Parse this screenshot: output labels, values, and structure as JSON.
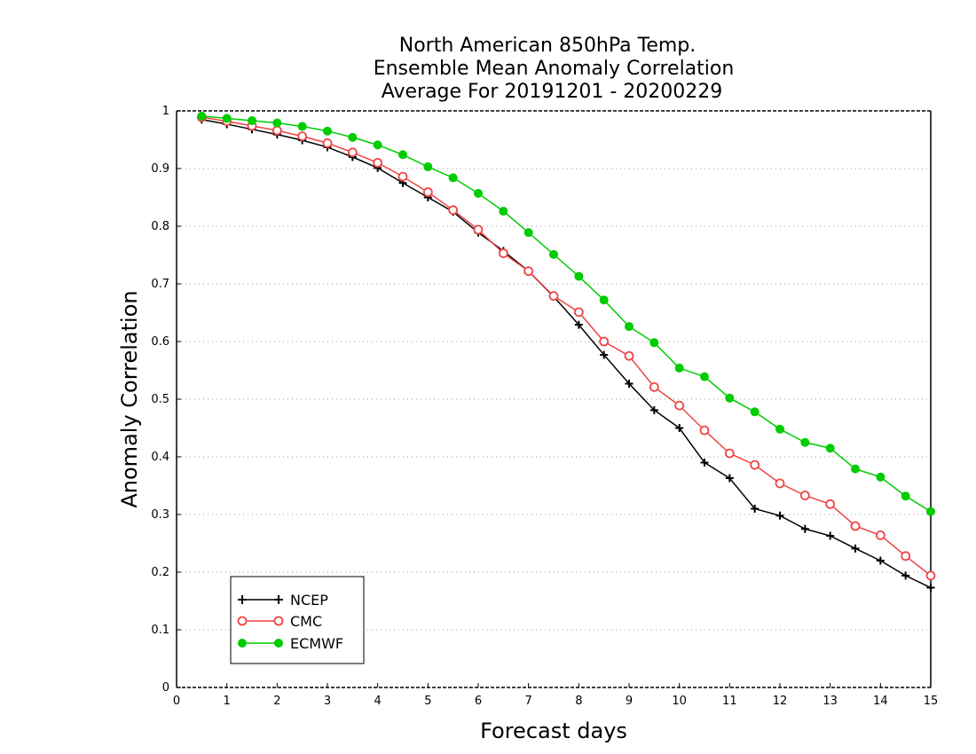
{
  "chart_data": {
    "type": "line",
    "title": [
      "North American 850hPa Temp.",
      "Ensemble Mean Anomaly Correlation",
      "Average For 20191201 - 20200229"
    ],
    "xlabel": "Forecast days",
    "ylabel": "Anomaly Correlation",
    "xlim": [
      0,
      15
    ],
    "ylim": [
      0,
      1
    ],
    "x_ticks": [
      "0",
      "1",
      "2",
      "3",
      "4",
      "5",
      "6",
      "7",
      "8",
      "9",
      "10",
      "11",
      "12",
      "13",
      "14",
      "15"
    ],
    "y_ticks": [
      "0",
      "0.1",
      "0.2",
      "0.3",
      "0.4",
      "0.5",
      "0.6",
      "0.7",
      "0.8",
      "0.9",
      "1"
    ],
    "grid": "horizontal dotted",
    "legend_position": "bottom-left",
    "x": [
      0.5,
      1,
      1.5,
      2,
      2.5,
      3,
      3.5,
      4,
      4.5,
      5,
      5.5,
      6,
      6.5,
      7,
      7.5,
      8,
      8.5,
      9,
      9.5,
      10,
      10.5,
      11,
      11.5,
      12,
      12.5,
      13,
      13.5,
      14,
      14.5,
      15
    ],
    "series": [
      {
        "name": "NCEP",
        "color": "#000000",
        "marker": "plus",
        "values": [
          0.985,
          0.977,
          0.968,
          0.959,
          0.949,
          0.937,
          0.92,
          0.901,
          0.875,
          0.85,
          0.825,
          0.789,
          0.757,
          0.722,
          0.678,
          0.629,
          0.577,
          0.527,
          0.481,
          0.45,
          0.39,
          0.363,
          0.31,
          0.298,
          0.275,
          0.263,
          0.241,
          0.22,
          0.194,
          0.173
        ]
      },
      {
        "name": "CMC",
        "color": "#ee4444",
        "marker": "open-circle",
        "values": [
          0.989,
          0.982,
          0.974,
          0.966,
          0.956,
          0.944,
          0.928,
          0.91,
          0.886,
          0.859,
          0.828,
          0.794,
          0.753,
          0.722,
          0.679,
          0.651,
          0.6,
          0.575,
          0.521,
          0.489,
          0.446,
          0.406,
          0.386,
          0.354,
          0.333,
          0.318,
          0.28,
          0.264,
          0.228,
          0.194
        ]
      },
      {
        "name": "ECMWF",
        "color": "#00cc00",
        "marker": "filled-circle",
        "values": [
          0.991,
          0.987,
          0.983,
          0.979,
          0.973,
          0.965,
          0.954,
          0.941,
          0.924,
          0.903,
          0.884,
          0.857,
          0.826,
          0.789,
          0.751,
          0.713,
          0.672,
          0.626,
          0.598,
          0.554,
          0.539,
          0.502,
          0.478,
          0.448,
          0.425,
          0.415,
          0.379,
          0.365,
          0.332,
          0.305
        ]
      }
    ]
  }
}
